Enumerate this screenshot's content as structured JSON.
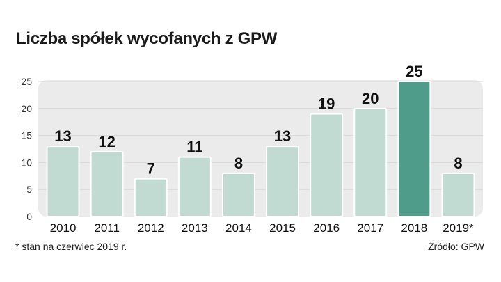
{
  "title": "Liczba spółek wycofanych z GPW",
  "footnote": "* stan na czerwiec 2019 r.",
  "source": "Źródło: GPW",
  "colors": {
    "bar": "#c2dbd2",
    "bar_highlight": "#4f9c8a",
    "panel": "#ebebeb",
    "grid": "#d8d8d8"
  },
  "chart_data": {
    "type": "bar",
    "title": "Liczba spółek wycofanych z GPW",
    "categories": [
      "2010",
      "2011",
      "2012",
      "2013",
      "2014",
      "2015",
      "2016",
      "2017",
      "2018",
      "2019*"
    ],
    "values": [
      13,
      12,
      7,
      11,
      8,
      13,
      19,
      20,
      25,
      8
    ],
    "highlight_category": "2018",
    "ylim": [
      0,
      25
    ],
    "yticks": [
      0,
      5,
      10,
      15,
      20,
      25
    ],
    "grid": true,
    "xlabel": "",
    "ylabel": ""
  }
}
